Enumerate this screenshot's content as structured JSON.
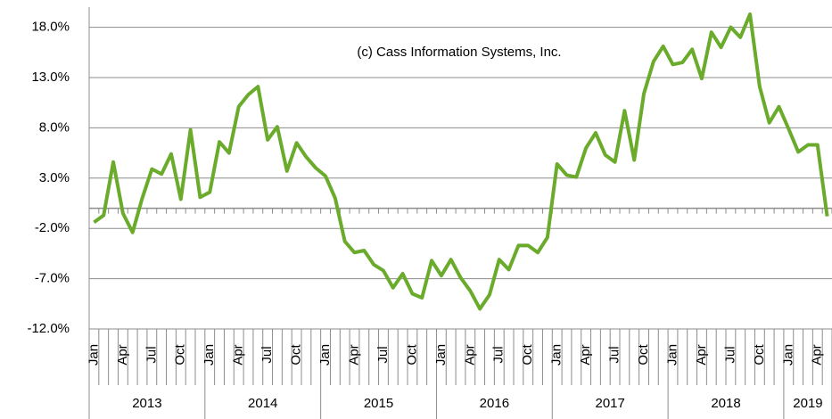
{
  "chart_data": {
    "type": "line",
    "annotation": "(c) Cass Information Systems, Inc.",
    "categories": [
      "Jan",
      null,
      null,
      "Apr",
      null,
      null,
      "Jul",
      null,
      null,
      "Oct",
      null,
      null,
      "Jan",
      null,
      null,
      "Apr",
      null,
      null,
      "Jul",
      null,
      null,
      "Oct",
      null,
      null,
      "Jan",
      null,
      null,
      "Apr",
      null,
      null,
      "Jul",
      null,
      null,
      "Oct",
      null,
      null,
      "Jan",
      null,
      null,
      "Apr",
      null,
      null,
      "Jul",
      null,
      null,
      "Oct",
      null,
      null,
      "Jan",
      null,
      null,
      "Apr",
      null,
      null,
      "Jul",
      null,
      null,
      "Oct",
      null,
      null,
      "Jan",
      null,
      null,
      "Apr",
      null,
      null,
      "Jul",
      null,
      null,
      "Oct",
      null,
      null,
      "Jan",
      null,
      null,
      "Apr",
      null
    ],
    "years": [
      "2013",
      "2014",
      "2015",
      "2016",
      "2017",
      "2018",
      "2019"
    ],
    "series": [
      {
        "color": "#6aab2c",
        "values": [
          -1.4,
          -0.7,
          4.6,
          -0.5,
          -2.4,
          1.0,
          3.9,
          3.4,
          5.4,
          0.9,
          7.8,
          1.1,
          1.6,
          6.6,
          5.5,
          10.1,
          11.3,
          12.1,
          6.8,
          8.1,
          3.7,
          6.5,
          5.1,
          4.0,
          3.2,
          1.0,
          -3.3,
          -4.4,
          -4.2,
          -5.6,
          -6.2,
          -7.9,
          -6.5,
          -8.5,
          -8.9,
          -5.2,
          -6.7,
          -5.1,
          -6.9,
          -8.2,
          -10.0,
          -8.6,
          -5.1,
          -6.1,
          -3.7,
          -3.7,
          -4.4,
          -2.9,
          4.4,
          3.3,
          3.1,
          6.0,
          7.5,
          5.3,
          4.6,
          9.7,
          4.8,
          11.4,
          14.6,
          16.1,
          14.3,
          14.5,
          15.8,
          12.9,
          17.5,
          16.0,
          18.0,
          17.0,
          19.3,
          12.1,
          8.5,
          10.1,
          7.9,
          5.6,
          6.3,
          6.3,
          -0.8
        ]
      }
    ],
    "ylim": [
      -12,
      20
    ],
    "yticks": [
      {
        "value": -12,
        "label": "-12.0%"
      },
      {
        "value": -7,
        "label": "-7.0%"
      },
      {
        "value": -2,
        "label": "-2.0%"
      },
      {
        "value": 3,
        "label": "3.0%"
      },
      {
        "value": 8,
        "label": "8.0%"
      },
      {
        "value": 13,
        "label": "13.0%"
      },
      {
        "value": 18,
        "label": "18.0%"
      }
    ],
    "grid": true
  }
}
